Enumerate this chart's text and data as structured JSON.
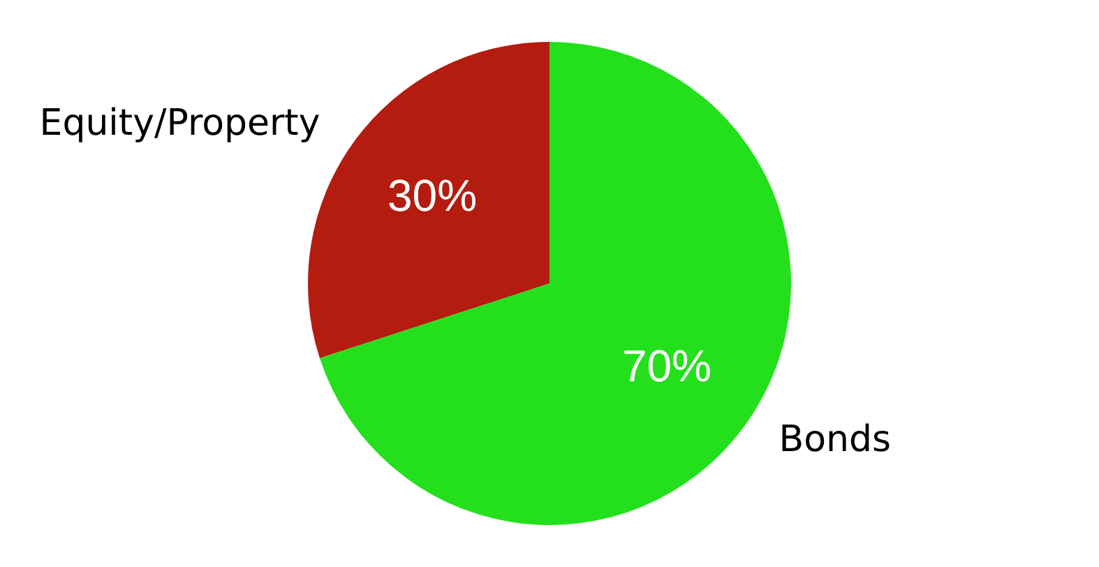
{
  "chart_data": {
    "type": "pie",
    "categories": [
      "Equity/Property",
      "Bonds"
    ],
    "values": [
      30,
      70
    ],
    "colors": [
      "#b41c10",
      "#24e01c"
    ],
    "value_labels": [
      "30%",
      "70%"
    ],
    "legend": false
  }
}
